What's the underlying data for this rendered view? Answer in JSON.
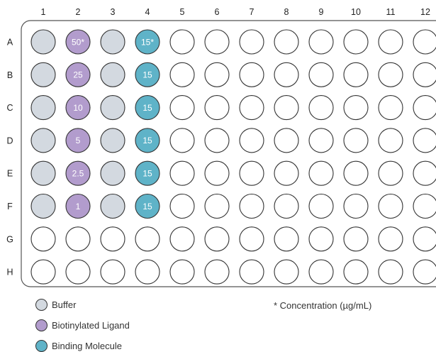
{
  "plate": {
    "columns": [
      "1",
      "2",
      "3",
      "4",
      "5",
      "6",
      "7",
      "8",
      "9",
      "10",
      "11",
      "12"
    ],
    "rows": [
      "A",
      "B",
      "C",
      "D",
      "E",
      "F",
      "G",
      "H"
    ],
    "wells": {
      "A1": {
        "type": "buffer"
      },
      "B1": {
        "type": "buffer"
      },
      "C1": {
        "type": "buffer"
      },
      "D1": {
        "type": "buffer"
      },
      "E1": {
        "type": "buffer"
      },
      "F1": {
        "type": "buffer"
      },
      "A2": {
        "type": "ligand",
        "label": "50*"
      },
      "B2": {
        "type": "ligand",
        "label": "25"
      },
      "C2": {
        "type": "ligand",
        "label": "10"
      },
      "D2": {
        "type": "ligand",
        "label": "5"
      },
      "E2": {
        "type": "ligand",
        "label": "2.5"
      },
      "F2": {
        "type": "ligand",
        "label": "1"
      },
      "A3": {
        "type": "buffer"
      },
      "B3": {
        "type": "buffer"
      },
      "C3": {
        "type": "buffer"
      },
      "D3": {
        "type": "buffer"
      },
      "E3": {
        "type": "buffer"
      },
      "F3": {
        "type": "buffer"
      },
      "A4": {
        "type": "binding",
        "label": "15*"
      },
      "B4": {
        "type": "binding",
        "label": "15"
      },
      "C4": {
        "type": "binding",
        "label": "15"
      },
      "D4": {
        "type": "binding",
        "label": "15"
      },
      "E4": {
        "type": "binding",
        "label": "15"
      },
      "F4": {
        "type": "binding",
        "label": "15"
      }
    }
  },
  "colors": {
    "buffer": "#d3d9e0",
    "ligand": "#b29ccd",
    "binding": "#5fb3c8",
    "empty": "#ffffff"
  },
  "legend": {
    "buffer": "Buffer",
    "ligand": "Biotinylated Ligand",
    "binding": "Binding Molecule"
  },
  "footnote": "* Concentration (µg/mL)"
}
